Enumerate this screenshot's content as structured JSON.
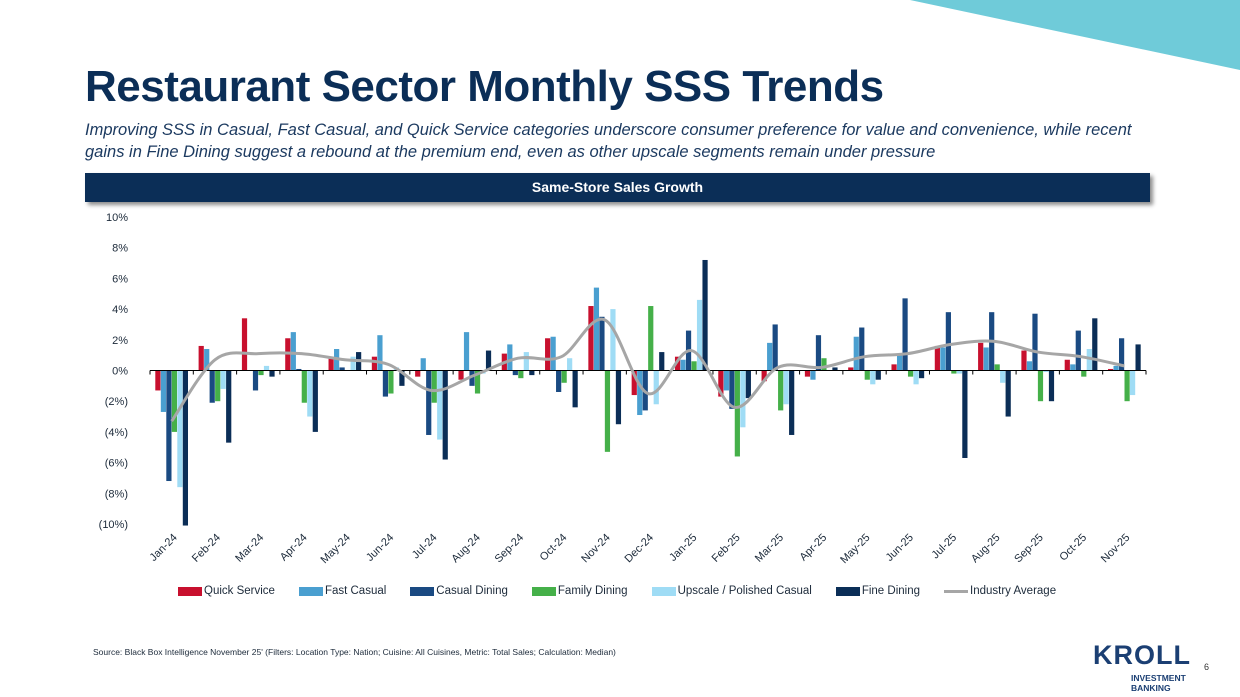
{
  "header": {
    "title": "Restaurant Sector Monthly SSS Trends",
    "subtitle": "Improving SSS in Casual, Fast Casual, and Quick Service categories underscore consumer preference for value and convenience, while recent gains in Fine Dining suggest a rebound at the premium end, even as other upscale segments remain under pressure"
  },
  "footer": {
    "source": "Source: Black Box Intelligence November 25' (Filters: Location Type: Nation; Cuisine: All Cuisines, Metric: Total Sales; Calculation: Median)",
    "logo": "KROLL",
    "logo_sub": "INVESTMENT BANKING",
    "page_number": "6"
  },
  "colors": {
    "accent": "#6fcbd9",
    "navy": "#0b2e57"
  },
  "chart_data": {
    "type": "bar",
    "title": "Same-Store Sales Growth",
    "xlabel": "",
    "ylabel": "",
    "ylim": [
      -10,
      10
    ],
    "yticks": [
      10,
      8,
      6,
      4,
      2,
      0,
      -2,
      -4,
      -6,
      -8,
      -10
    ],
    "ytick_labels": [
      "10%",
      "8%",
      "6%",
      "4%",
      "2%",
      "0%",
      "(2%)",
      "(4%)",
      "(6%)",
      "(8%)",
      "(10%)"
    ],
    "legend_position": "bottom",
    "grid": false,
    "categories": [
      "Jan-24",
      "Feb-24",
      "Mar-24",
      "Apr-24",
      "May-24",
      "Jun-24",
      "Jul-24",
      "Aug-24",
      "Sep-24",
      "Oct-24",
      "Nov-24",
      "Dec-24",
      "Jan-25",
      "Feb-25",
      "Mar-25",
      "Apr-25",
      "May-25",
      "Jun-25",
      "Jul-25",
      "Aug-25",
      "Sep-25",
      "Oct-25",
      "Nov-25"
    ],
    "series": [
      {
        "name": "Quick Service",
        "type": "bar",
        "color": "#c8102e",
        "values": [
          -1.3,
          1.6,
          3.4,
          2.1,
          0.8,
          0.9,
          -0.4,
          -0.6,
          1.1,
          2.1,
          4.2,
          -1.6,
          0.9,
          -1.7,
          -0.7,
          -0.4,
          0.2,
          0.4,
          1.6,
          1.8,
          1.3,
          0.7,
          0.1
        ]
      },
      {
        "name": "Fast Casual",
        "type": "bar",
        "color": "#4a9fd0",
        "values": [
          -2.7,
          1.4,
          0.0,
          2.5,
          1.4,
          2.3,
          0.8,
          2.5,
          1.7,
          2.2,
          5.4,
          -2.9,
          0.7,
          -1.3,
          1.8,
          -0.6,
          2.2,
          1.1,
          1.5,
          1.5,
          0.6,
          0.4,
          0.3
        ]
      },
      {
        "name": "Casual Dining",
        "type": "bar",
        "color": "#1a4a82",
        "values": [
          -7.2,
          -2.1,
          -1.3,
          0.1,
          0.2,
          -1.7,
          -4.2,
          -1.0,
          -0.3,
          -1.4,
          3.5,
          -2.6,
          2.6,
          -2.5,
          3.0,
          2.3,
          2.8,
          4.7,
          3.8,
          3.8,
          3.7,
          2.6,
          2.1
        ]
      },
      {
        "name": "Family Dining",
        "type": "bar",
        "color": "#45b049",
        "values": [
          -4.0,
          -2.0,
          -0.3,
          -2.1,
          0.0,
          -1.5,
          -2.1,
          -1.5,
          -0.5,
          -0.8,
          -5.3,
          4.2,
          0.6,
          -5.6,
          -2.6,
          0.8,
          -0.6,
          -0.4,
          -0.2,
          0.4,
          -2.0,
          -0.4,
          -2.0
        ]
      },
      {
        "name": "Upscale / Polished Casual",
        "type": "bar",
        "color": "#9fdcf5",
        "values": [
          -7.6,
          -1.2,
          0.3,
          -3.0,
          0.9,
          0.2,
          -4.5,
          -0.2,
          1.2,
          0.8,
          4.0,
          -2.2,
          4.6,
          -3.7,
          -2.2,
          0.0,
          -0.9,
          -0.9,
          -0.2,
          -0.8,
          -0.1,
          1.4,
          -1.6
        ]
      },
      {
        "name": "Fine Dining",
        "type": "bar",
        "color": "#0b2e57",
        "values": [
          -10.1,
          -4.7,
          -0.4,
          -4.0,
          1.2,
          -1.0,
          -5.8,
          1.3,
          -0.3,
          -2.4,
          -3.5,
          1.2,
          7.2,
          -1.8,
          -4.2,
          0.2,
          -0.6,
          -0.5,
          -5.7,
          -3.0,
          -2.0,
          3.4,
          1.7
        ]
      },
      {
        "name": "Industry Average",
        "type": "line",
        "color": "#a6a6a6",
        "values": [
          -3.3,
          0.7,
          1.1,
          1.1,
          0.7,
          0.4,
          -1.3,
          -0.3,
          0.8,
          0.9,
          3.3,
          -1.5,
          1.3,
          -2.4,
          0.2,
          0.2,
          0.9,
          1.1,
          1.7,
          1.9,
          1.2,
          0.9,
          0.3
        ]
      }
    ]
  }
}
